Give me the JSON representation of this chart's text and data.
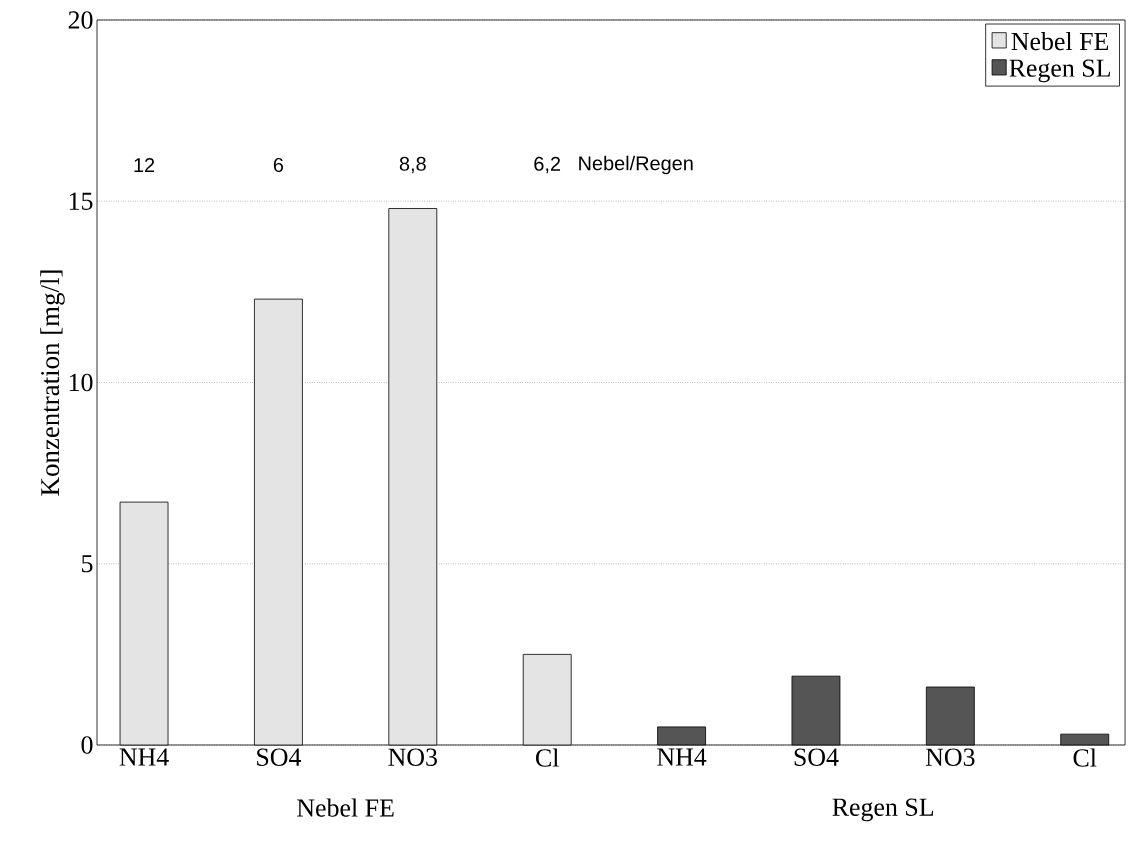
{
  "chart_data": {
    "type": "bar",
    "ylabel": "Konzentration [mg/l]",
    "categories": [
      "NH4",
      "SO4",
      "NO3",
      "Cl",
      "NH4",
      "SO4",
      "NO3",
      "Cl"
    ],
    "series": [
      {
        "name": "Nebel FE",
        "color": "#e4e4e4",
        "values": [
          6.7,
          12.3,
          14.8,
          2.5,
          null,
          null,
          null,
          null
        ]
      },
      {
        "name": "Regen SL",
        "color": "#555555",
        "values": [
          null,
          null,
          null,
          null,
          0.5,
          1.9,
          1.6,
          0.3
        ]
      }
    ],
    "ylim": [
      0,
      20
    ],
    "yticks": [
      0,
      5,
      10,
      15,
      20
    ],
    "grid": "y",
    "legend": "top right",
    "annotations": [
      "12",
      "6",
      "8,8",
      "6,2",
      "Nebel/Regen",
      "Nebel FE",
      "Regen SL"
    ]
  }
}
